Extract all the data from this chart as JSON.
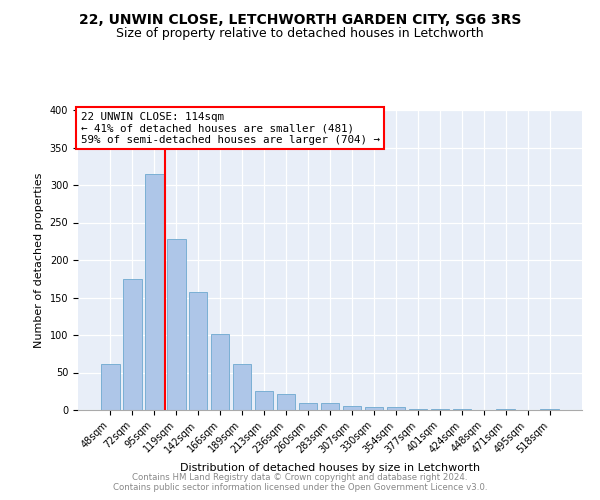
{
  "title1": "22, UNWIN CLOSE, LETCHWORTH GARDEN CITY, SG6 3RS",
  "title2": "Size of property relative to detached houses in Letchworth",
  "xlabel": "Distribution of detached houses by size in Letchworth",
  "ylabel": "Number of detached properties",
  "categories": [
    "48sqm",
    "72sqm",
    "95sqm",
    "119sqm",
    "142sqm",
    "166sqm",
    "189sqm",
    "213sqm",
    "236sqm",
    "260sqm",
    "283sqm",
    "307sqm",
    "330sqm",
    "354sqm",
    "377sqm",
    "401sqm",
    "424sqm",
    "448sqm",
    "471sqm",
    "495sqm",
    "518sqm"
  ],
  "values": [
    62,
    175,
    315,
    228,
    158,
    102,
    61,
    26,
    22,
    9,
    10,
    6,
    4,
    4,
    1,
    2,
    1,
    0,
    1,
    0,
    2
  ],
  "bar_color": "#aec6e8",
  "bar_edge_color": "#7aafd4",
  "annotation_text_line1": "22 UNWIN CLOSE: 114sqm",
  "annotation_text_line2": "← 41% of detached houses are smaller (481)",
  "annotation_text_line3": "59% of semi-detached houses are larger (704) →",
  "annotation_box_color": "white",
  "annotation_box_edge_color": "red",
  "vline_color": "red",
  "yticks": [
    0,
    50,
    100,
    150,
    200,
    250,
    300,
    350,
    400
  ],
  "ylim": [
    0,
    400
  ],
  "footer1": "Contains HM Land Registry data © Crown copyright and database right 2024.",
  "footer2": "Contains public sector information licensed under the Open Government Licence v3.0.",
  "bg_color": "#e8eef8",
  "title1_fontsize": 10,
  "title2_fontsize": 9
}
